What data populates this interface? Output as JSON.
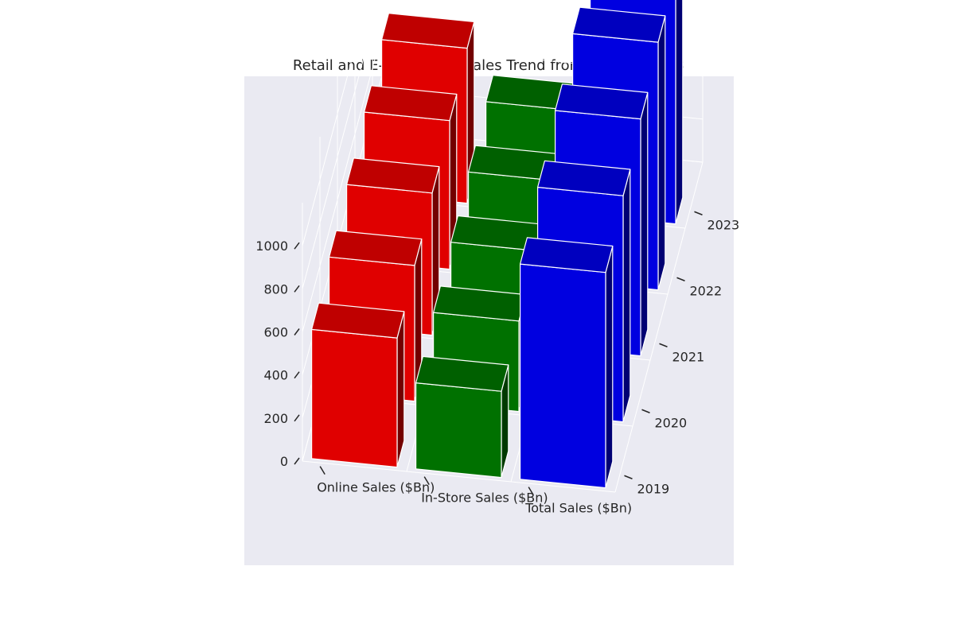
{
  "chart_data": {
    "type": "bar",
    "title": "Retail and E-commerce Sales Trend from 2019 to 2023",
    "xlabel": "",
    "ylabel": "",
    "zlabel": "",
    "categories": [
      "Online Sales ($Bn)",
      "In-Store Sales ($Bn)",
      "Total Sales ($Bn)"
    ],
    "years": [
      "2019",
      "2020",
      "2021",
      "2022",
      "2023"
    ],
    "series": [
      {
        "values": [
          600,
          400,
          1000
        ]
      },
      {
        "values": [
          630,
          420,
          1050
        ]
      },
      {
        "values": [
          660,
          440,
          1100
        ]
      },
      {
        "values": [
          690,
          460,
          1150
        ]
      },
      {
        "values": [
          720,
          480,
          1200
        ]
      }
    ],
    "zlim": [
      0,
      1200
    ],
    "zticks": [
      0,
      200,
      400,
      600,
      800,
      1000
    ],
    "colors": {
      "Online Sales ($Bn)": "#ff0000",
      "In-Store Sales ($Bn)": "#008000",
      "Total Sales ($Bn)": "#0000ff"
    },
    "pane_color": "#eaeaf2",
    "grid": true,
    "view": "3d"
  }
}
